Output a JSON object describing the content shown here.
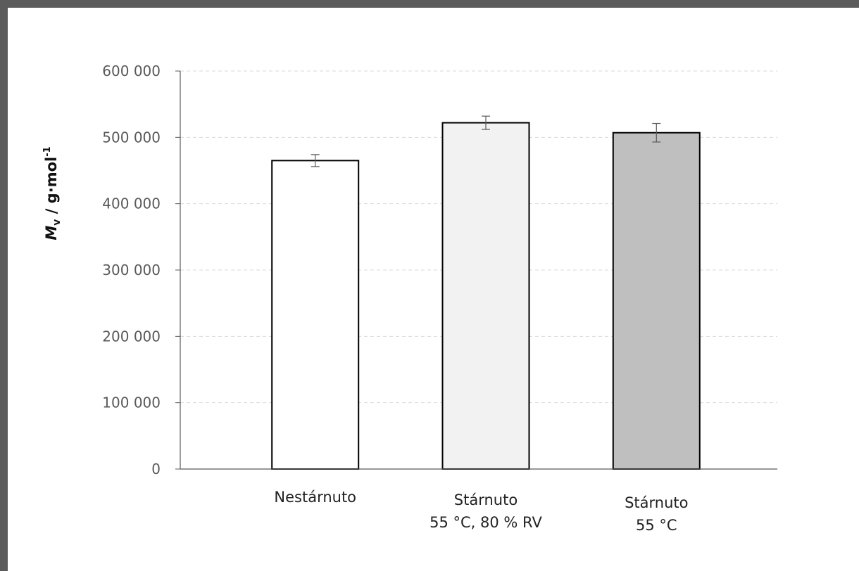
{
  "chart_data": {
    "type": "bar",
    "title": "",
    "xlabel": "",
    "ylabel": {
      "symbol": "M",
      "subscript": "v",
      "unit": " / g·mol",
      "superscript": "-1"
    },
    "ylim": [
      0,
      600000
    ],
    "yticks": [
      0,
      100000,
      200000,
      300000,
      400000,
      500000,
      600000
    ],
    "ytick_labels": [
      "0",
      "100 000",
      "200 000",
      "300 000",
      "400 000",
      "500 000",
      "600 000"
    ],
    "grid": true,
    "legend": "none",
    "categories": [
      [
        "Nestárnuto"
      ],
      [
        "Stárnuto",
        "55 °C, 80 % RV"
      ],
      [
        "Stárnuto",
        "55 °C"
      ]
    ],
    "values": [
      465000,
      522000,
      507000
    ],
    "errors": [
      9000,
      10000,
      14000
    ],
    "colors": [
      "#ffffff",
      "#f2f2f2",
      "#bfbfbf"
    ]
  }
}
